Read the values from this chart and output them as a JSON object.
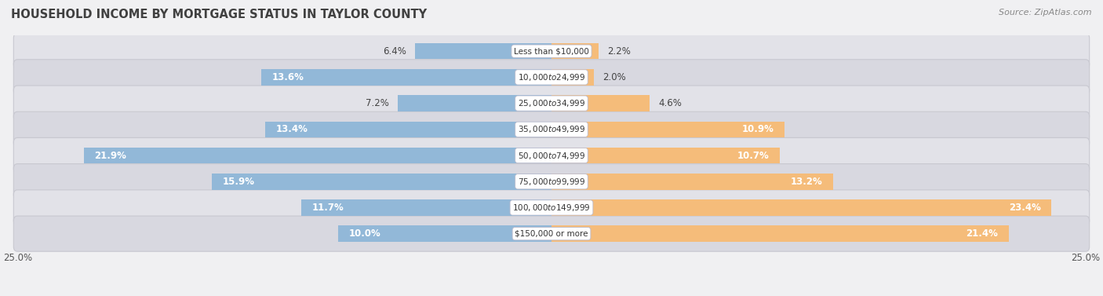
{
  "title": "HOUSEHOLD INCOME BY MORTGAGE STATUS IN TAYLOR COUNTY",
  "source": "Source: ZipAtlas.com",
  "categories": [
    "Less than $10,000",
    "$10,000 to $24,999",
    "$25,000 to $34,999",
    "$35,000 to $49,999",
    "$50,000 to $74,999",
    "$75,000 to $99,999",
    "$100,000 to $149,999",
    "$150,000 or more"
  ],
  "without_mortgage": [
    6.4,
    13.6,
    7.2,
    13.4,
    21.9,
    15.9,
    11.7,
    10.0
  ],
  "with_mortgage": [
    2.2,
    2.0,
    4.6,
    10.9,
    10.7,
    13.2,
    23.4,
    21.4
  ],
  "color_without": "#92b8d8",
  "color_with": "#f5bc7a",
  "color_without_dark": "#6a9fc0",
  "color_with_dark": "#e8963a",
  "axis_max": 25.0,
  "bg_color": "#f0f0f2",
  "row_bg": "#e8e8ec",
  "label_inside_threshold": 15.0,
  "label_fontsize": 8.5,
  "cat_fontsize": 7.5,
  "title_fontsize": 10.5
}
